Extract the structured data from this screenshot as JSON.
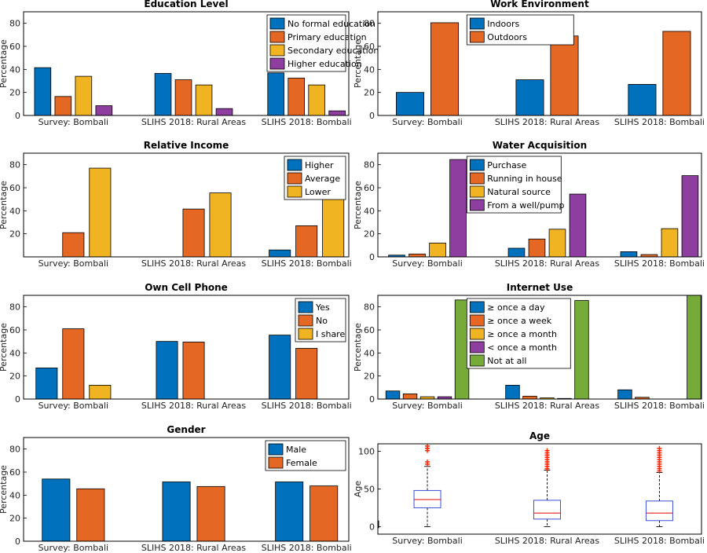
{
  "colors": {
    "blue": "#0072BD",
    "orange": "#E46723",
    "yellow": "#F0B322",
    "purple": "#8E3E9E",
    "green": "#76AB3A",
    "median": "#E8201B",
    "whisker": "#000000",
    "box": "#3A4FD9",
    "outlier": "#FF2200"
  },
  "chart_data": [
    {
      "type": "bar",
      "title": "Education Level",
      "ylabel": "Percentage",
      "ylim": [
        0,
        90
      ],
      "yticks": [
        0,
        20,
        40,
        60,
        80
      ],
      "legend_position": "top-right",
      "categories": [
        "Survey: Bombali",
        "SLIHS 2018: Rural Areas",
        "SLIHS 2018: Bombali"
      ],
      "series": [
        {
          "name": "No formal education",
          "color": "blue",
          "values": [
            41.5,
            36.5,
            37
          ]
        },
        {
          "name": "Primary education",
          "color": "orange",
          "values": [
            16.5,
            31,
            32.5
          ]
        },
        {
          "name": "Secondary education",
          "color": "yellow",
          "values": [
            34,
            26.5,
            26.5
          ]
        },
        {
          "name": "Higher education",
          "color": "purple",
          "values": [
            8.5,
            6,
            4
          ]
        }
      ]
    },
    {
      "type": "bar",
      "title": "Work Environment",
      "ylabel": "Percentage",
      "ylim": [
        0,
        90
      ],
      "yticks": [
        0,
        20,
        40,
        60,
        80
      ],
      "legend_position": "top-left",
      "categories": [
        "Survey: Bombali",
        "SLIHS 2018: Rural Areas",
        "SLIHS 2018: Bombali"
      ],
      "series": [
        {
          "name": "Indoors",
          "color": "blue",
          "values": [
            20,
            31,
            27
          ]
        },
        {
          "name": "Outdoors",
          "color": "orange",
          "values": [
            80.5,
            69,
            73
          ]
        }
      ]
    },
    {
      "type": "bar",
      "title": "Relative Income",
      "ylabel": "Percentage",
      "ylim": [
        0,
        90
      ],
      "yticks": [
        20,
        40,
        60,
        80
      ],
      "legend_position": "top-right",
      "categories": [
        "Survey: Bombali",
        "SLIHS 2018: Rural Areas",
        "SLIHS 2018: Bombali"
      ],
      "series": [
        {
          "name": "Higher",
          "color": "blue",
          "values": [
            0,
            0,
            6
          ]
        },
        {
          "name": "Average",
          "color": "orange",
          "values": [
            21,
            41.5,
            27
          ]
        },
        {
          "name": "Lower",
          "color": "yellow",
          "values": [
            77,
            55.5,
            66.5
          ]
        }
      ]
    },
    {
      "type": "bar",
      "title": "Water Acquisition",
      "ylabel": "Percentage",
      "ylim": [
        0,
        90
      ],
      "yticks": [
        0,
        20,
        40,
        60,
        80
      ],
      "legend_position": "top-left",
      "categories": [
        "Survey: Bombali",
        "SLIHS 2018: Rural Areas",
        "SLIHS 2018: Bombali"
      ],
      "series": [
        {
          "name": "Purchase",
          "color": "blue",
          "values": [
            1.5,
            7.5,
            4.5
          ]
        },
        {
          "name": "Running in house",
          "color": "orange",
          "values": [
            2.5,
            15.5,
            2
          ]
        },
        {
          "name": "Natural source",
          "color": "yellow",
          "values": [
            12,
            24,
            24.5
          ]
        },
        {
          "name": "From a well/pump",
          "color": "purple",
          "values": [
            84.5,
            54.5,
            70.5
          ]
        }
      ]
    },
    {
      "type": "bar",
      "title": "Own Cell Phone",
      "ylabel": "Percentage",
      "ylim": [
        0,
        90
      ],
      "yticks": [
        0,
        20,
        40,
        60,
        80
      ],
      "legend_position": "top-right",
      "categories": [
        "Survey: Bombali",
        "SLIHS 2018: Rural Areas",
        "SLIHS 2018: Bombali"
      ],
      "series": [
        {
          "name": "Yes",
          "color": "blue",
          "values": [
            27,
            50,
            55.5
          ]
        },
        {
          "name": "No",
          "color": "orange",
          "values": [
            61,
            49.5,
            44
          ]
        },
        {
          "name": "I share",
          "color": "yellow",
          "values": [
            12,
            0,
            0
          ]
        }
      ]
    },
    {
      "type": "bar",
      "title": "Internet Use",
      "ylabel": "Percentage",
      "ylim": [
        0,
        90
      ],
      "yticks": [
        0,
        20,
        40,
        60,
        80
      ],
      "legend_position": "top-left",
      "categories": [
        "Survey: Bombali",
        "SLIHS 2018: Rural Areas",
        "SLIHS 2018: Bombali"
      ],
      "series": [
        {
          "name": "≥ once a day",
          "color": "blue",
          "values": [
            7,
            12,
            8
          ]
        },
        {
          "name": "≥ once a week",
          "color": "orange",
          "values": [
            4.5,
            2.5,
            1.5
          ]
        },
        {
          "name": "≥ once a month",
          "color": "yellow",
          "values": [
            2,
            1,
            0
          ]
        },
        {
          "name": "< once a month",
          "color": "purple",
          "values": [
            2,
            0.5,
            0
          ]
        },
        {
          "name": "Not at all",
          "color": "green",
          "values": [
            86,
            85.5,
            90
          ]
        }
      ]
    },
    {
      "type": "bar",
      "title": "Gender",
      "ylabel": "Percentage",
      "ylim": [
        0,
        90
      ],
      "yticks": [
        0,
        20,
        40,
        60,
        80
      ],
      "legend_position": "top-right",
      "categories": [
        "Survey: Bombali",
        "SLIHS 2018: Rural Areas",
        "SLIHS 2018: Bombali"
      ],
      "series": [
        {
          "name": "Male",
          "color": "blue",
          "values": [
            54,
            51.5,
            51.5
          ]
        },
        {
          "name": "Female",
          "color": "orange",
          "values": [
            45.5,
            47.5,
            48
          ]
        }
      ]
    },
    {
      "type": "boxplot",
      "title": "Age",
      "ylabel": "Age",
      "ylim": [
        -10,
        110
      ],
      "yticks": [
        0,
        50,
        100
      ],
      "categories": [
        "Survey: Bombali",
        "SLIHS 2018: Rural Areas",
        "SLIHS 2018: Bombali"
      ],
      "boxes": [
        {
          "min": 0,
          "q1": 25,
          "median": 36,
          "q3": 48,
          "max": 80,
          "outliers": [
            83,
            86,
            101,
            104,
            107
          ]
        },
        {
          "min": 0,
          "q1": 10,
          "median": 18,
          "q3": 35,
          "max": 75,
          "outliers": [
            77,
            80,
            83,
            86,
            89,
            92,
            95,
            98,
            101
          ]
        },
        {
          "min": 0,
          "q1": 8,
          "median": 18,
          "q3": 34,
          "max": 72,
          "outliers": [
            74,
            77,
            80,
            83,
            86,
            89,
            92,
            95,
            98,
            101,
            104
          ]
        }
      ]
    }
  ]
}
